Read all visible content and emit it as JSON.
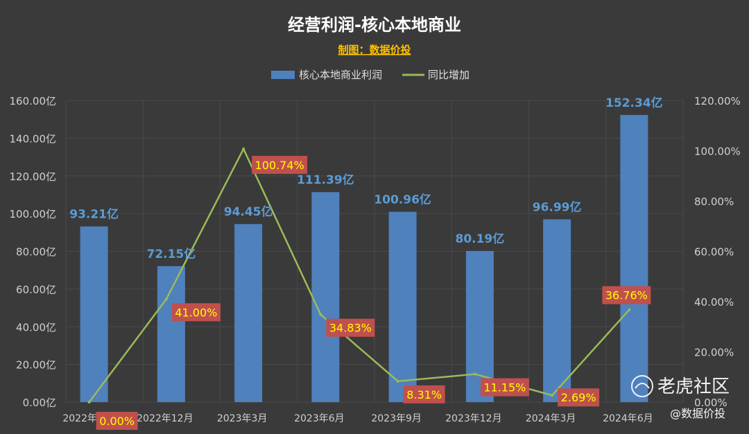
{
  "chart_data": {
    "type": "bar",
    "title": "经营利润-核心本地商业",
    "subtitle": "制图：数据价投",
    "categories": [
      "2022年9月",
      "2022年12月",
      "2023年3月",
      "2023年6月",
      "2023年9月",
      "2023年12月",
      "2024年3月",
      "2024年6月"
    ],
    "series": [
      {
        "name": "核心本地商业利润",
        "type": "bar",
        "axis": "left",
        "values": [
          93.21,
          72.15,
          94.45,
          111.39,
          100.96,
          80.19,
          96.99,
          152.34
        ],
        "labels": [
          "93.21亿",
          "72.15亿",
          "94.45亿",
          "111.39亿",
          "100.96亿",
          "80.19亿",
          "96.99亿",
          "152.34亿"
        ]
      },
      {
        "name": "同比增加",
        "type": "line",
        "axis": "right",
        "values": [
          0.0,
          41.0,
          100.74,
          34.83,
          8.31,
          11.15,
          2.69,
          36.76
        ],
        "labels": [
          "0.00%",
          "41.00%",
          "100.74%",
          "34.83%",
          "8.31%",
          "11.15%",
          "2.69%",
          "36.76%"
        ]
      }
    ],
    "y_left": {
      "range": [
        0,
        160
      ],
      "ticks": [
        "0.00亿",
        "20.00亿",
        "40.00亿",
        "60.00亿",
        "80.00亿",
        "100.00亿",
        "120.00亿",
        "140.00亿",
        "160.00亿"
      ]
    },
    "y_right": {
      "range": [
        0,
        120
      ],
      "ticks": [
        "0.00%",
        "20.00%",
        "40.00%",
        "60.00%",
        "80.00%",
        "100.00%",
        "120.00%"
      ]
    },
    "grid": true,
    "legend_position": "top-center",
    "colors": {
      "background": "#3a3a3a",
      "bar": "#4f81bd",
      "line": "#9bbb59",
      "bar_label": "#5b9bd5",
      "pct_label_bg": "#c0504d",
      "pct_label_text": "#ffff00",
      "subtitle": "#ffc000",
      "title": "#ffffff",
      "axis_text": "#d0d0d0",
      "grid": "#4a4a4a"
    }
  },
  "watermark": {
    "brand": "老虎社区",
    "handle": "@数据价投"
  }
}
